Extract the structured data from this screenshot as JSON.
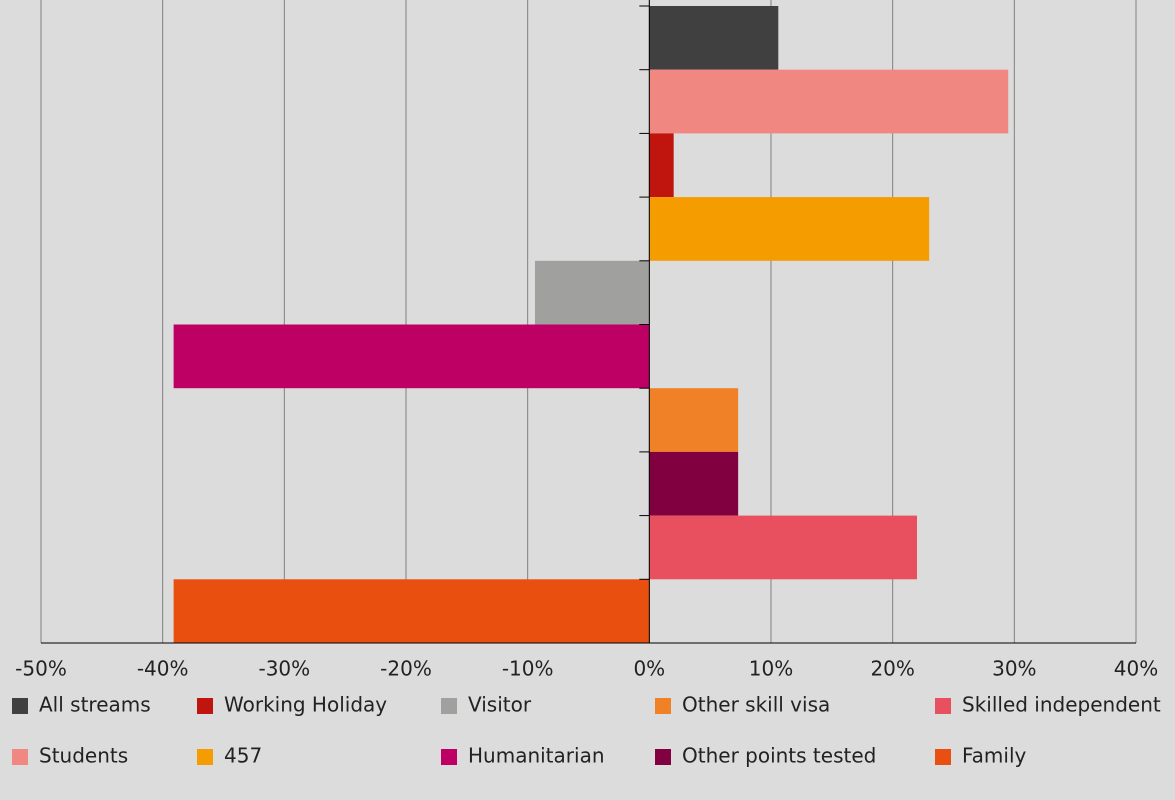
{
  "chart_data": {
    "type": "bar",
    "orientation": "horizontal",
    "categories": [
      null,
      null,
      null,
      null,
      null,
      null,
      null,
      null,
      null,
      null
    ],
    "series": [
      {
        "name": "All streams",
        "color": "#404040",
        "values": [
          10.6,
          null,
          null,
          null,
          null,
          null,
          null,
          null,
          null,
          null
        ]
      },
      {
        "name": "Students",
        "color": "#f08881",
        "values": [
          null,
          29.5,
          null,
          null,
          null,
          null,
          null,
          null,
          null,
          null
        ]
      },
      {
        "name": "Working Holiday",
        "color": "#c0140f",
        "values": [
          null,
          null,
          2.0,
          null,
          null,
          null,
          null,
          null,
          null,
          null
        ]
      },
      {
        "name": "457",
        "color": "#f59c00",
        "values": [
          null,
          null,
          null,
          23.0,
          null,
          null,
          null,
          null,
          null,
          null
        ]
      },
      {
        "name": "Visitor",
        "color": "#a0a09e",
        "values": [
          null,
          null,
          null,
          null,
          -9.4,
          null,
          null,
          null,
          null,
          null
        ]
      },
      {
        "name": "Humanitarian",
        "color": "#be0064",
        "values": [
          null,
          null,
          null,
          null,
          null,
          -39.1,
          null,
          null,
          null,
          null
        ]
      },
      {
        "name": "Other skill visa",
        "color": "#f08127",
        "values": [
          null,
          null,
          null,
          null,
          null,
          null,
          7.3,
          null,
          null,
          null
        ]
      },
      {
        "name": "Other points tested",
        "color": "#800040",
        "values": [
          null,
          null,
          null,
          null,
          null,
          null,
          null,
          7.3,
          null,
          null
        ]
      },
      {
        "name": "Skilled independent",
        "color": "#e8505f",
        "values": [
          null,
          null,
          null,
          null,
          null,
          null,
          null,
          null,
          22.0,
          null
        ]
      },
      {
        "name": "Family",
        "color": "#e94f0f",
        "values": [
          null,
          null,
          null,
          null,
          null,
          null,
          null,
          null,
          null,
          -39.1
        ]
      }
    ],
    "xlim": [
      -50,
      40
    ],
    "xticks": [
      {
        "value": -50,
        "label": "-50%"
      },
      {
        "value": -40,
        "label": "-40%"
      },
      {
        "value": -30,
        "label": "-30%"
      },
      {
        "value": -20,
        "label": "-20%"
      },
      {
        "value": -10,
        "label": "-10%"
      },
      {
        "value": 0,
        "label": "0%"
      },
      {
        "value": 10,
        "label": "10%"
      },
      {
        "value": 20,
        "label": "20%"
      },
      {
        "value": 30,
        "label": "30%"
      },
      {
        "value": 40,
        "label": "40%"
      }
    ],
    "grid": true,
    "legend": "bottom"
  }
}
